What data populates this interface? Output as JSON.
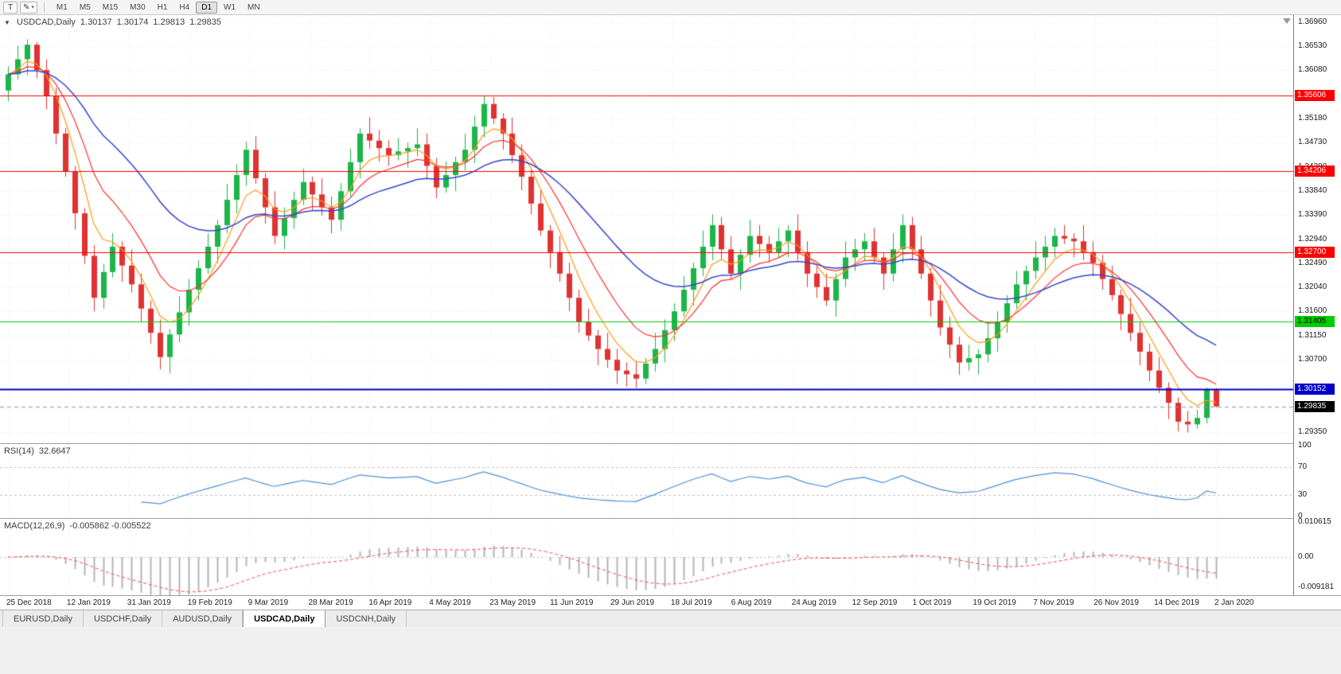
{
  "toolbar": {
    "text_tool_label": "T",
    "drawing_tool_icon": "✎",
    "dropdown_caret": "▾",
    "timeframes": [
      "M1",
      "M5",
      "M15",
      "M30",
      "H1",
      "H4",
      "D1",
      "W1",
      "MN"
    ],
    "active_timeframe": "D1"
  },
  "chart_header": {
    "collapse_icon": "▼",
    "symbol": "USDCAD,Daily",
    "open": "1.30137",
    "high": "1.30174",
    "low": "1.29813",
    "close": "1.29835"
  },
  "price_axis_labels": [
    "1.36960",
    "1.36530",
    "1.36080",
    "1.35180",
    "1.34730",
    "1.34280",
    "1.33840",
    "1.33390",
    "1.32940",
    "1.32490",
    "1.32040",
    "1.31600",
    "1.31150",
    "1.30700",
    "1.29350"
  ],
  "rsi": {
    "name": "RSI(14)",
    "value": "32.6647",
    "axis_labels": [
      "100",
      "70",
      "30",
      "0"
    ],
    "overbought": 70,
    "oversold": 30
  },
  "macd": {
    "name": "MACD(12,26,9)",
    "value": "-0.005862 -0.005522",
    "axis_labels": [
      "0.010615",
      "0.00",
      "-0.009181"
    ]
  },
  "tabs": {
    "items": [
      "EURUSD,Daily",
      "USDCHF,Daily",
      "AUDUSD,Daily",
      "USDCAD,Daily",
      "USDCNH,Daily"
    ],
    "active": "USDCAD,Daily"
  },
  "colors": {
    "candle_up": "#1CB54A",
    "candle_down": "#E03232",
    "ma_fast": "#FF9913",
    "ma_medium": "#FF2E2E",
    "ma_slow": "#3346CC",
    "rsi_line": "#4A90D9",
    "macd_histogram": "#B4B4B4",
    "macd_signal": "#FF4444",
    "grid": "#ECECEC",
    "last_price_line": "#999999"
  },
  "chart_data": {
    "type": "candlestick",
    "title": "USDCAD Daily",
    "x_labels": [
      "25 Dec 2018",
      "12 Jan 2019",
      "31 Jan 2019",
      "19 Feb 2019",
      "9 Mar 2019",
      "28 Mar 2019",
      "16 Apr 2019",
      "4 May 2019",
      "23 May 2019",
      "11 Jun 2019",
      "29 Jun 2019",
      "18 Jul 2019",
      "6 Aug 2019",
      "24 Aug 2019",
      "12 Sep 2019",
      "1 Oct 2019",
      "19 Oct 2019",
      "7 Nov 2019",
      "26 Nov 2019",
      "14 Dec 2019",
      "2 Jan 2020"
    ],
    "y_range": [
      1.2915,
      1.371
    ],
    "ohlc": [
      [
        1.357,
        1.3615,
        1.355,
        1.36
      ],
      [
        1.36,
        1.3653,
        1.359,
        1.3628
      ],
      [
        1.3628,
        1.3665,
        1.3598,
        1.3655
      ],
      [
        1.3655,
        1.366,
        1.3593,
        1.3608
      ],
      [
        1.3608,
        1.3628,
        1.3535,
        1.356
      ],
      [
        1.356,
        1.3575,
        1.347,
        1.349
      ],
      [
        1.349,
        1.35,
        1.341,
        1.342
      ],
      [
        1.342,
        1.343,
        1.3312,
        1.3342
      ],
      [
        1.3342,
        1.3352,
        1.3248,
        1.3263
      ],
      [
        1.3263,
        1.3283,
        1.316,
        1.3185
      ],
      [
        1.3185,
        1.3248,
        1.3165,
        1.3233
      ],
      [
        1.3233,
        1.3305,
        1.3223,
        1.328
      ],
      [
        1.328,
        1.329,
        1.3215,
        1.3245
      ],
      [
        1.3245,
        1.3275,
        1.3195,
        1.321
      ],
      [
        1.321,
        1.323,
        1.314,
        1.3165
      ],
      [
        1.3165,
        1.318,
        1.31,
        1.312
      ],
      [
        1.312,
        1.3145,
        1.3052,
        1.3075
      ],
      [
        1.3075,
        1.3127,
        1.3045,
        1.3117
      ],
      [
        1.3117,
        1.3188,
        1.3102,
        1.3158
      ],
      [
        1.3158,
        1.322,
        1.3133,
        1.32
      ],
      [
        1.32,
        1.3255,
        1.318,
        1.324
      ],
      [
        1.324,
        1.3305,
        1.323,
        1.328
      ],
      [
        1.328,
        1.333,
        1.325,
        1.332
      ],
      [
        1.332,
        1.3397,
        1.3305,
        1.3367
      ],
      [
        1.3367,
        1.3433,
        1.3342,
        1.3413
      ],
      [
        1.3413,
        1.3475,
        1.3393,
        1.346
      ],
      [
        1.346,
        1.3485,
        1.3397,
        1.3407
      ],
      [
        1.3407,
        1.3417,
        1.3323,
        1.3353
      ],
      [
        1.3353,
        1.3383,
        1.3285,
        1.33
      ],
      [
        1.33,
        1.3353,
        1.3275,
        1.3333
      ],
      [
        1.3333,
        1.3382,
        1.3313,
        1.3367
      ],
      [
        1.3367,
        1.3425,
        1.3357,
        1.34
      ],
      [
        1.34,
        1.341,
        1.3347,
        1.3377
      ],
      [
        1.3377,
        1.3407,
        1.3338,
        1.3353
      ],
      [
        1.3353,
        1.3373,
        1.3305,
        1.333
      ],
      [
        1.333,
        1.3398,
        1.331,
        1.3383
      ],
      [
        1.3383,
        1.3462,
        1.3373,
        1.3437
      ],
      [
        1.3437,
        1.35,
        1.3407,
        1.349
      ],
      [
        1.349,
        1.352,
        1.3462,
        1.3477
      ],
      [
        1.3477,
        1.3497,
        1.3438,
        1.3463
      ],
      [
        1.3463,
        1.3478,
        1.343,
        1.345
      ],
      [
        1.345,
        1.3482,
        1.344,
        1.3457
      ],
      [
        1.3457,
        1.3473,
        1.3427,
        1.3463
      ],
      [
        1.3463,
        1.35,
        1.3448,
        1.347
      ],
      [
        1.347,
        1.349,
        1.3405,
        1.343
      ],
      [
        1.343,
        1.3445,
        1.337,
        1.339
      ],
      [
        1.339,
        1.3438,
        1.338,
        1.3413
      ],
      [
        1.3413,
        1.3447,
        1.3383,
        1.3437
      ],
      [
        1.3437,
        1.349,
        1.3422,
        1.346
      ],
      [
        1.346,
        1.3523,
        1.3435,
        1.3503
      ],
      [
        1.3503,
        1.356,
        1.3483,
        1.3545
      ],
      [
        1.3545,
        1.3558,
        1.3508,
        1.3518
      ],
      [
        1.3518,
        1.3528,
        1.346,
        1.349
      ],
      [
        1.349,
        1.352,
        1.3435,
        1.345
      ],
      [
        1.345,
        1.347,
        1.3385,
        1.341
      ],
      [
        1.341,
        1.3425,
        1.334,
        1.336
      ],
      [
        1.336,
        1.3385,
        1.33,
        1.331
      ],
      [
        1.331,
        1.332,
        1.324,
        1.327
      ],
      [
        1.327,
        1.33,
        1.3215,
        1.323
      ],
      [
        1.323,
        1.325,
        1.316,
        1.3185
      ],
      [
        1.3185,
        1.32,
        1.312,
        1.314
      ],
      [
        1.314,
        1.3165,
        1.3105,
        1.3115
      ],
      [
        1.3115,
        1.3125,
        1.306,
        1.309
      ],
      [
        1.309,
        1.312,
        1.3055,
        1.307
      ],
      [
        1.307,
        1.309,
        1.3025,
        1.305
      ],
      [
        1.305,
        1.3065,
        1.302,
        1.3043
      ],
      [
        1.3043,
        1.3068,
        1.3018,
        1.3035
      ],
      [
        1.3035,
        1.3073,
        1.3025,
        1.3063
      ],
      [
        1.3063,
        1.312,
        1.3048,
        1.309
      ],
      [
        1.309,
        1.3145,
        1.3065,
        1.3125
      ],
      [
        1.3125,
        1.3175,
        1.3105,
        1.316
      ],
      [
        1.316,
        1.3225,
        1.315,
        1.32
      ],
      [
        1.32,
        1.325,
        1.317,
        1.324
      ],
      [
        1.324,
        1.331,
        1.3225,
        1.328
      ],
      [
        1.328,
        1.334,
        1.3255,
        1.332
      ],
      [
        1.332,
        1.3335,
        1.3255,
        1.3275
      ],
      [
        1.3275,
        1.33,
        1.322,
        1.323
      ],
      [
        1.323,
        1.3275,
        1.32,
        1.3265
      ],
      [
        1.3265,
        1.333,
        1.325,
        1.33
      ],
      [
        1.33,
        1.332,
        1.326,
        1.3285
      ],
      [
        1.3285,
        1.33,
        1.325,
        1.327
      ],
      [
        1.327,
        1.3315,
        1.326,
        1.329
      ],
      [
        1.329,
        1.332,
        1.326,
        1.331
      ],
      [
        1.331,
        1.334,
        1.3255,
        1.327
      ],
      [
        1.327,
        1.329,
        1.3205,
        1.323
      ],
      [
        1.323,
        1.3245,
        1.3185,
        1.3205
      ],
      [
        1.3205,
        1.323,
        1.317,
        1.318
      ],
      [
        1.318,
        1.323,
        1.315,
        1.322
      ],
      [
        1.322,
        1.329,
        1.3205,
        1.326
      ],
      [
        1.326,
        1.3295,
        1.3235,
        1.3275
      ],
      [
        1.3275,
        1.3305,
        1.3255,
        1.329
      ],
      [
        1.329,
        1.3315,
        1.325,
        1.326
      ],
      [
        1.326,
        1.327,
        1.32,
        1.323
      ],
      [
        1.323,
        1.3305,
        1.3215,
        1.3275
      ],
      [
        1.3275,
        1.334,
        1.325,
        1.332
      ],
      [
        1.332,
        1.3335,
        1.3255,
        1.3275
      ],
      [
        1.3275,
        1.33,
        1.322,
        1.323
      ],
      [
        1.323,
        1.324,
        1.315,
        1.318
      ],
      [
        1.318,
        1.321,
        1.3115,
        1.313
      ],
      [
        1.313,
        1.315,
        1.3073,
        1.3098
      ],
      [
        1.3098,
        1.3113,
        1.3042,
        1.3065
      ],
      [
        1.3065,
        1.3098,
        1.305,
        1.3073
      ],
      [
        1.3073,
        1.309,
        1.3043,
        1.308
      ],
      [
        1.308,
        1.314,
        1.3065,
        1.311
      ],
      [
        1.311,
        1.316,
        1.3085,
        1.314
      ],
      [
        1.314,
        1.319,
        1.312,
        1.3175
      ],
      [
        1.3175,
        1.3235,
        1.3165,
        1.321
      ],
      [
        1.321,
        1.3245,
        1.318,
        1.3235
      ],
      [
        1.3235,
        1.329,
        1.322,
        1.326
      ],
      [
        1.326,
        1.33,
        1.3235,
        1.328
      ],
      [
        1.328,
        1.3315,
        1.326,
        1.33
      ],
      [
        1.33,
        1.332,
        1.3285,
        1.3295
      ],
      [
        1.3295,
        1.3305,
        1.326,
        1.329
      ],
      [
        1.329,
        1.332,
        1.3255,
        1.327
      ],
      [
        1.327,
        1.329,
        1.3225,
        1.325
      ],
      [
        1.325,
        1.3265,
        1.32,
        1.322
      ],
      [
        1.322,
        1.3245,
        1.318,
        1.319
      ],
      [
        1.319,
        1.32,
        1.3125,
        1.3155
      ],
      [
        1.3155,
        1.3185,
        1.3105,
        1.312
      ],
      [
        1.312,
        1.314,
        1.306,
        1.3085
      ],
      [
        1.3085,
        1.31,
        1.303,
        1.305
      ],
      [
        1.305,
        1.3075,
        1.3008,
        1.3018
      ],
      [
        1.3018,
        1.3028,
        1.296,
        1.299
      ],
      [
        1.299,
        1.3,
        1.2937,
        1.2955
      ],
      [
        1.2955,
        1.2975,
        1.2935,
        1.295
      ],
      [
        1.295,
        1.2977,
        1.2942,
        1.2962
      ],
      [
        1.2962,
        1.3018,
        1.2952,
        1.3014
      ],
      [
        1.30137,
        1.30174,
        1.29813,
        1.29835
      ]
    ],
    "levels": [
      {
        "price": 1.35606,
        "label": "1.35606",
        "color": "#FF0000",
        "text_color": "#FFFFFF",
        "width": 1
      },
      {
        "price": 1.34206,
        "label": "1.34206",
        "color": "#FF0000",
        "text_color": "#FFFFFF",
        "width": 1
      },
      {
        "price": 1.327,
        "label": "1.32700",
        "color": "#FF0000",
        "text_color": "#FFFFFF",
        "width": 1
      },
      {
        "price": 1.31405,
        "label": "1.31405",
        "color": "#00CC00",
        "text_color": "#000000",
        "width": 1
      },
      {
        "price": 1.30152,
        "label": "1.30152",
        "color": "#0000C8",
        "text_color": "#FFFFFF",
        "width": 2
      }
    ],
    "last_price": {
      "price": 1.29835,
      "label": "1.29835",
      "tag_color": "#000000",
      "text_color": "#FFFFFF"
    },
    "moving_averages": [
      {
        "name": "fast",
        "period": 5,
        "color_key": "ma_fast"
      },
      {
        "name": "medium",
        "period": 10,
        "color_key": "ma_medium"
      },
      {
        "name": "slow",
        "period": 24,
        "color_key": "ma_slow"
      }
    ],
    "indicators": [
      {
        "name": "RSI",
        "period": 14,
        "current": 32.6647
      },
      {
        "name": "MACD",
        "fast": 12,
        "slow": 26,
        "signal": 9,
        "current": [
          -0.005862,
          -0.005522
        ]
      }
    ]
  }
}
